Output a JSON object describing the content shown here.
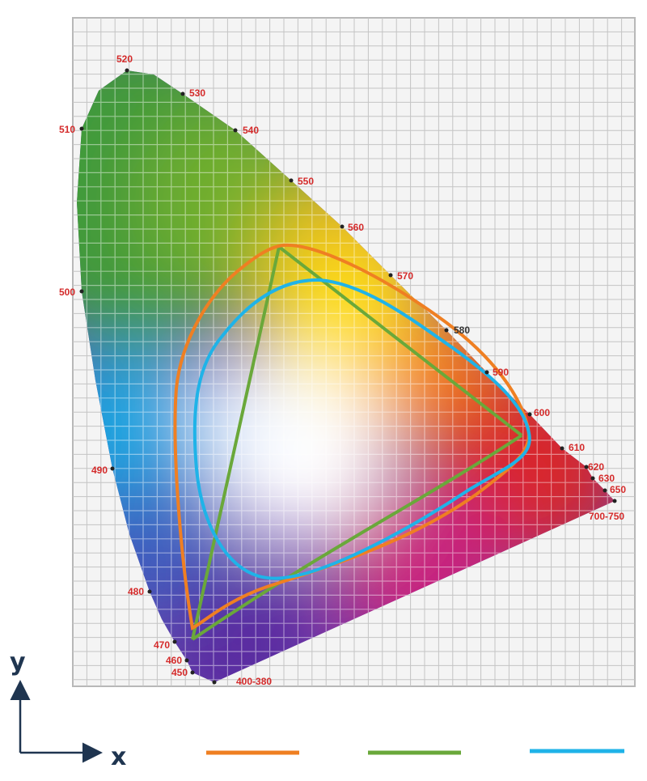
{
  "axes": {
    "x": "x",
    "y": "y"
  },
  "wavelength_labels": [
    "400-380",
    "450",
    "460",
    "470",
    "480",
    "490",
    "500",
    "510",
    "520",
    "530",
    "540",
    "550",
    "560",
    "570",
    "580",
    "590",
    "600",
    "610",
    "620",
    "630",
    "650",
    "700-750"
  ]
}
